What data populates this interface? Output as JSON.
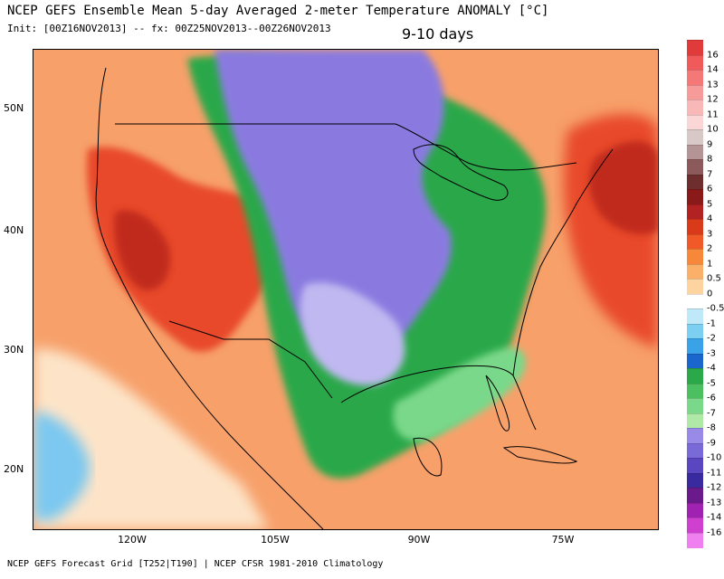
{
  "header": {
    "title": "NCEP GEFS Ensemble Mean 5-day Averaged 2-meter Temperature ANOMALY [°C]",
    "init": "Init: [00Z16NOV2013] -- fx: 00Z25NOV2013--00Z26NOV2013",
    "period": "9-10 days"
  },
  "footer": "NCEP GEFS Forecast Grid [T252|T190] | NCEP CFSR 1981-2010 Climatology",
  "axes": {
    "lat_labels": [
      "50N",
      "40N",
      "30N",
      "20N"
    ],
    "lon_labels": [
      "120W",
      "105W",
      "90W",
      "75W"
    ]
  },
  "colorbar": {
    "labels": [
      "16",
      "14",
      "13",
      "12",
      "11",
      "10",
      "9",
      "8",
      "7",
      "6",
      "5",
      "4",
      "3",
      "2",
      "1",
      "0.5",
      "0",
      "-0.5",
      "-1",
      "-2",
      "-3",
      "-4",
      "-5",
      "-6",
      "-7",
      "-8",
      "-9",
      "-10",
      "-11",
      "-12",
      "-13",
      "-14",
      "-16"
    ],
    "colors": [
      "#e03a3a",
      "#f05a5a",
      "#f47878",
      "#f69a9a",
      "#f9b8b8",
      "#fbd6d6",
      "#d8c8c8",
      "#b49494",
      "#8c5a5a",
      "#6e2e2e",
      "#8a1a1a",
      "#b22222",
      "#d83a1a",
      "#f05a28",
      "#f7883a",
      "#fbb06a",
      "#fdd4a0",
      "#ffffff",
      "#bfe8f8",
      "#7ccff0",
      "#3aa2e6",
      "#1a66cc",
      "#2aa84a",
      "#4cc060",
      "#7ad88a",
      "#b0e8a8",
      "#9a8ae8",
      "#7a6ad8",
      "#5a46c0",
      "#3a2aa0",
      "#6a1a8a",
      "#a022b0",
      "#d040d0",
      "#f080f0"
    ]
  },
  "map": {
    "region": "North America",
    "colors": {
      "ocean_warm": "#f7a06a",
      "hot": "#e84a2a",
      "very_hot": "#c02a1a",
      "neutral": "#fde4c8",
      "cool": "#7cc8f0",
      "green": "#2aa84a",
      "light_green": "#7ad88a",
      "purple": "#8a7ae0",
      "lavender": "#c0b8f0"
    }
  }
}
